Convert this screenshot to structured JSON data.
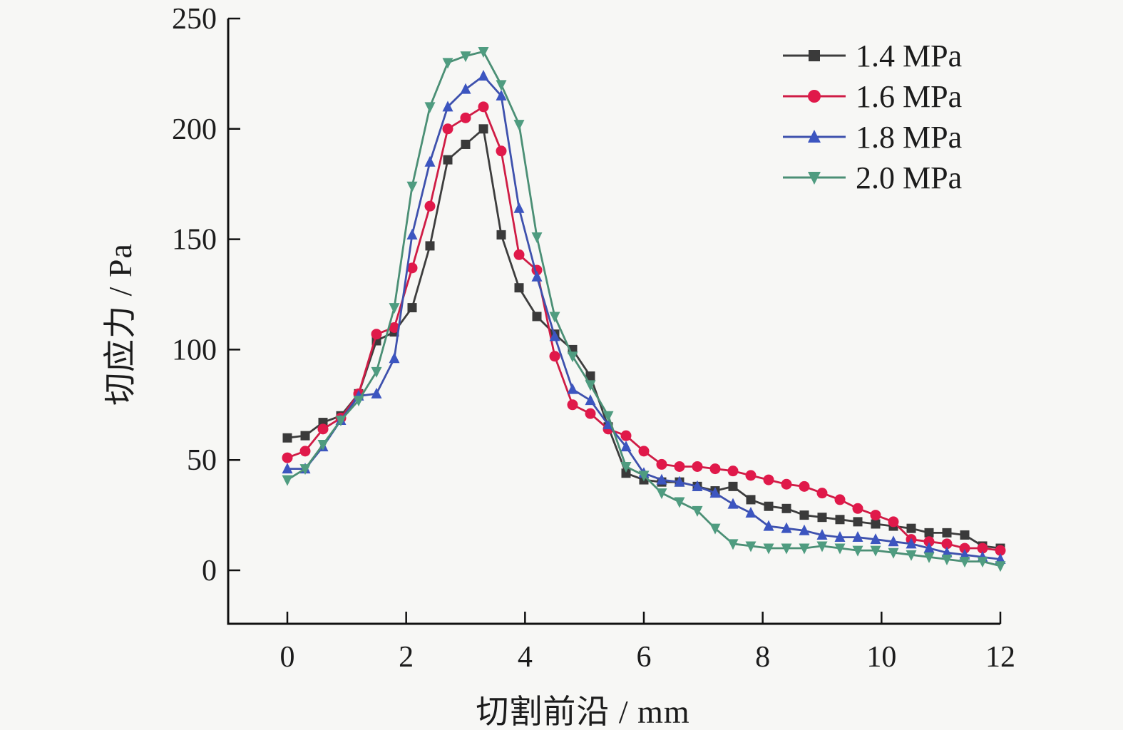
{
  "figure": {
    "background": "#f7f7f5",
    "text_color": "#1c1c1c",
    "axis_color": "#111111"
  },
  "chart_data": {
    "type": "line",
    "title": "",
    "xlabel": "切割前沿 / mm",
    "ylabel": "切应力 / Pa",
    "xlim": [
      0,
      12
    ],
    "ylim": [
      0,
      250
    ],
    "x_ticks": [
      0,
      2,
      4,
      6,
      8,
      10,
      12
    ],
    "y_ticks": [
      0,
      50,
      100,
      150,
      200,
      250
    ],
    "grid": false,
    "legend_position": "upper right",
    "x": [
      0.0,
      0.3,
      0.6,
      0.9,
      1.2,
      1.5,
      1.8,
      2.1,
      2.4,
      2.7,
      3.0,
      3.3,
      3.6,
      3.9,
      4.2,
      4.5,
      4.8,
      5.1,
      5.4,
      5.7,
      6.0,
      6.3,
      6.6,
      6.9,
      7.2,
      7.5,
      7.8,
      8.1,
      8.4,
      8.7,
      9.0,
      9.3,
      9.6,
      9.9,
      10.2,
      10.5,
      10.8,
      11.1,
      11.4,
      11.7,
      12.0
    ],
    "series": [
      {
        "name": "1.4 MPa",
        "marker": "square",
        "color": "#3a3a3a",
        "line_color": "#3d3d3d",
        "values": [
          60,
          61,
          67,
          70,
          80,
          104,
          108,
          119,
          147,
          186,
          193,
          200,
          152,
          128,
          115,
          107,
          100,
          88,
          65,
          44,
          41,
          40,
          40,
          38,
          36,
          38,
          32,
          29,
          28,
          25,
          24,
          23,
          22,
          21,
          20,
          19,
          17,
          17,
          16,
          11,
          10
        ]
      },
      {
        "name": "1.6 MPa",
        "marker": "circle",
        "color": "#e0194a",
        "line_color": "#cf1c45",
        "values": [
          51,
          54,
          64,
          69,
          80,
          107,
          110,
          137,
          165,
          200,
          205,
          210,
          190,
          143,
          136,
          97,
          75,
          71,
          64,
          61,
          54,
          48,
          47,
          47,
          46,
          45,
          43,
          41,
          39,
          38,
          35,
          32,
          28,
          25,
          22,
          14,
          13,
          12,
          10,
          10,
          9
        ]
      },
      {
        "name": "1.8 MPa",
        "marker": "triangle-up",
        "color": "#3c55c0",
        "line_color": "#3e51ad",
        "values": [
          46,
          46,
          56,
          68,
          79,
          80,
          96,
          152,
          185,
          210,
          218,
          224,
          215,
          164,
          133,
          106,
          82,
          77,
          66,
          56,
          44,
          41,
          40,
          38,
          35,
          30,
          26,
          20,
          19,
          18,
          16,
          15,
          15,
          14,
          13,
          12,
          10,
          8,
          7,
          6,
          5
        ]
      },
      {
        "name": "2.0 MPa",
        "marker": "triangle-down",
        "color": "#4f9c80",
        "line_color": "#4b8f75",
        "values": [
          41,
          46,
          57,
          68,
          77,
          90,
          119,
          174,
          210,
          230,
          233,
          235,
          220,
          202,
          151,
          115,
          97,
          84,
          70,
          47,
          43,
          35,
          31,
          27,
          19,
          12,
          11,
          10,
          10,
          10,
          11,
          10,
          9,
          9,
          8,
          7,
          6,
          5,
          4,
          4,
          2
        ]
      }
    ]
  }
}
